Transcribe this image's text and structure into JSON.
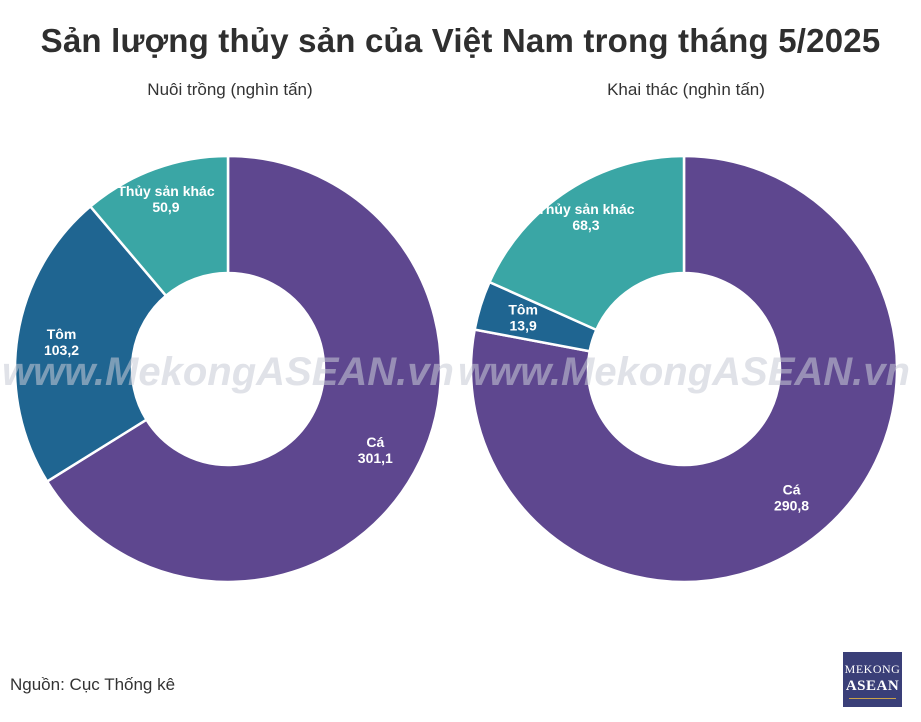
{
  "chart_data": {
    "type": "pie",
    "title": "Sản lượng thủy sản của Việt Nam trong tháng 5/2025",
    "source": "Nguồn: Cục Thống kê",
    "watermark": "www.MekongASEAN.vn",
    "logo": {
      "line1": "MEKONG",
      "line2": "ASEAN"
    },
    "charts": [
      {
        "subtitle": "Nuôi trồng (nghìn tấn)",
        "slices": [
          {
            "name": "Cá",
            "value": 301.1,
            "value_label": "301,1",
            "color": "#5e478f"
          },
          {
            "name": "Tôm",
            "value": 103.2,
            "value_label": "103,2",
            "color": "#1f6591"
          },
          {
            "name": "Thủy sản khác",
            "value": 50.9,
            "value_label": "50,9",
            "color": "#3aa6a5"
          }
        ]
      },
      {
        "subtitle": "Khai thác (nghìn tấn)",
        "slices": [
          {
            "name": "Cá",
            "value": 290.8,
            "value_label": "290,8",
            "color": "#5e478f"
          },
          {
            "name": "Tôm",
            "value": 13.9,
            "value_label": "13,9",
            "color": "#1f6591"
          },
          {
            "name": "Thủy sản khác",
            "value": 68.3,
            "value_label": "68,3",
            "color": "#3aa6a5"
          }
        ]
      }
    ]
  }
}
